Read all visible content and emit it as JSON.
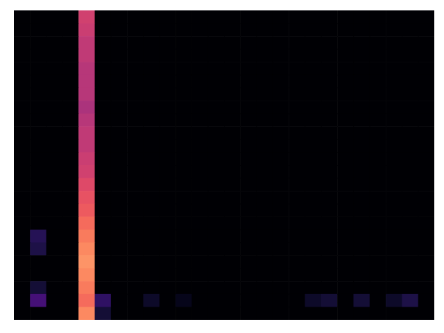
{
  "chart_data": {
    "type": "heatmap",
    "tick_labels": false,
    "zlim": [
      -80,
      0
    ],
    "z": [
      [
        -80,
        -80,
        -80,
        -80,
        -35,
        -80,
        -80,
        -80,
        -80,
        -80,
        -80,
        -80,
        -80,
        -80,
        -80,
        -80,
        -80,
        -80,
        -80,
        -80,
        -80,
        -80,
        -80,
        -80,
        -80,
        -80
      ],
      [
        -80,
        -80,
        -80,
        -80,
        -36,
        -80,
        -80,
        -80,
        -80,
        -80,
        -80,
        -80,
        -80,
        -80,
        -80,
        -80,
        -80,
        -80,
        -80,
        -80,
        -80,
        -80,
        -80,
        -80,
        -80,
        -80
      ],
      [
        -80,
        -80,
        -80,
        -80,
        -38,
        -80,
        -80,
        -80,
        -80,
        -80,
        -80,
        -80,
        -80,
        -80,
        -80,
        -80,
        -80,
        -80,
        -80,
        -80,
        -80,
        -80,
        -80,
        -80,
        -80,
        -80
      ],
      [
        -80,
        -80,
        -80,
        -80,
        -38,
        -80,
        -80,
        -80,
        -80,
        -80,
        -80,
        -80,
        -80,
        -80,
        -80,
        -80,
        -80,
        -80,
        -80,
        -80,
        -80,
        -80,
        -80,
        -80,
        -80,
        -80
      ],
      [
        -80,
        -80,
        -80,
        -80,
        -40,
        -80,
        -80,
        -80,
        -80,
        -80,
        -80,
        -80,
        -80,
        -80,
        -80,
        -80,
        -80,
        -80,
        -80,
        -80,
        -80,
        -80,
        -80,
        -80,
        -80,
        -80
      ],
      [
        -80,
        -80,
        -80,
        -80,
        -40,
        -80,
        -80,
        -80,
        -80,
        -80,
        -80,
        -80,
        -80,
        -80,
        -80,
        -80,
        -80,
        -80,
        -80,
        -80,
        -80,
        -80,
        -80,
        -80,
        -80,
        -80
      ],
      [
        -80,
        -80,
        -80,
        -80,
        -40,
        -80,
        -80,
        -80,
        -80,
        -80,
        -80,
        -80,
        -80,
        -80,
        -80,
        -80,
        -80,
        -80,
        -80,
        -80,
        -80,
        -80,
        -80,
        -80,
        -80,
        -80
      ],
      [
        -80,
        -80,
        -80,
        -80,
        -42,
        -80,
        -80,
        -80,
        -80,
        -80,
        -80,
        -80,
        -80,
        -80,
        -80,
        -80,
        -80,
        -80,
        -80,
        -80,
        -80,
        -80,
        -80,
        -80,
        -80,
        -80
      ],
      [
        -80,
        -80,
        -80,
        -80,
        -40,
        -80,
        -80,
        -80,
        -80,
        -80,
        -80,
        -80,
        -80,
        -80,
        -80,
        -80,
        -80,
        -80,
        -80,
        -80,
        -80,
        -80,
        -80,
        -80,
        -80,
        -80
      ],
      [
        -80,
        -80,
        -80,
        -80,
        -38,
        -80,
        -80,
        -80,
        -80,
        -80,
        -80,
        -80,
        -80,
        -80,
        -80,
        -80,
        -80,
        -80,
        -80,
        -80,
        -80,
        -80,
        -80,
        -80,
        -80,
        -80
      ],
      [
        -80,
        -80,
        -80,
        -80,
        -38,
        -80,
        -80,
        -80,
        -80,
        -80,
        -80,
        -80,
        -80,
        -80,
        -80,
        -80,
        -80,
        -80,
        -80,
        -80,
        -80,
        -80,
        -80,
        -80,
        -80,
        -80
      ],
      [
        -80,
        -80,
        -80,
        -80,
        -36,
        -80,
        -80,
        -80,
        -80,
        -80,
        -80,
        -80,
        -80,
        -80,
        -80,
        -80,
        -80,
        -80,
        -80,
        -80,
        -80,
        -80,
        -80,
        -80,
        -80,
        -80
      ],
      [
        -80,
        -80,
        -80,
        -80,
        -35,
        -80,
        -80,
        -80,
        -80,
        -80,
        -80,
        -80,
        -80,
        -80,
        -80,
        -80,
        -80,
        -80,
        -80,
        -80,
        -80,
        -80,
        -80,
        -80,
        -80,
        -80
      ],
      [
        -80,
        -80,
        -80,
        -80,
        -32,
        -80,
        -80,
        -80,
        -80,
        -80,
        -80,
        -80,
        -80,
        -80,
        -80,
        -80,
        -80,
        -80,
        -80,
        -80,
        -80,
        -80,
        -80,
        -80,
        -80,
        -80
      ],
      [
        -80,
        -80,
        -80,
        -80,
        -30,
        -80,
        -80,
        -80,
        -80,
        -80,
        -80,
        -80,
        -80,
        -80,
        -80,
        -80,
        -80,
        -80,
        -80,
        -80,
        -80,
        -80,
        -80,
        -80,
        -80,
        -80
      ],
      [
        -80,
        -80,
        -80,
        -80,
        -28,
        -80,
        -80,
        -80,
        -80,
        -80,
        -80,
        -80,
        -80,
        -80,
        -80,
        -80,
        -80,
        -80,
        -80,
        -80,
        -80,
        -80,
        -80,
        -80,
        -80,
        -80
      ],
      [
        -80,
        -80,
        -80,
        -80,
        -25,
        -80,
        -80,
        -80,
        -80,
        -80,
        -80,
        -80,
        -80,
        -80,
        -80,
        -80,
        -80,
        -80,
        -80,
        -80,
        -80,
        -80,
        -80,
        -80,
        -80,
        -80
      ],
      [
        -80,
        -68,
        -80,
        -80,
        -22,
        -80,
        -80,
        -80,
        -80,
        -80,
        -80,
        -80,
        -80,
        -80,
        -80,
        -80,
        -80,
        -80,
        -80,
        -80,
        -80,
        -80,
        -80,
        -80,
        -80,
        -80
      ],
      [
        -80,
        -70,
        -80,
        -80,
        -20,
        -80,
        -80,
        -80,
        -80,
        -80,
        -80,
        -80,
        -80,
        -80,
        -80,
        -80,
        -80,
        -80,
        -80,
        -80,
        -80,
        -80,
        -80,
        -80,
        -80,
        -80
      ],
      [
        -80,
        -80,
        -80,
        -80,
        -18,
        -80,
        -80,
        -80,
        -80,
        -80,
        -80,
        -80,
        -80,
        -80,
        -80,
        -80,
        -80,
        -80,
        -80,
        -80,
        -80,
        -80,
        -80,
        -80,
        -80,
        -80
      ],
      [
        -80,
        -80,
        -80,
        -80,
        -20,
        -80,
        -80,
        -80,
        -80,
        -80,
        -80,
        -80,
        -80,
        -80,
        -80,
        -80,
        -80,
        -80,
        -80,
        -80,
        -80,
        -80,
        -80,
        -80,
        -80,
        -80
      ],
      [
        -80,
        -72,
        -80,
        -80,
        -22,
        -80,
        -80,
        -80,
        -80,
        -80,
        -80,
        -80,
        -80,
        -80,
        -80,
        -80,
        -80,
        -80,
        -80,
        -80,
        -80,
        -80,
        -80,
        -80,
        -80,
        -80
      ],
      [
        -80,
        -62,
        -80,
        -80,
        -25,
        -66,
        -80,
        -80,
        -74,
        -80,
        -76,
        -80,
        -80,
        -80,
        -80,
        -80,
        -80,
        -80,
        -74,
        -72,
        -80,
        -72,
        -80,
        -74,
        -70,
        -80
      ],
      [
        -80,
        -80,
        -80,
        -80,
        -20,
        -72,
        -80,
        -80,
        -80,
        -80,
        -80,
        -80,
        -80,
        -80,
        -80,
        -80,
        -80,
        -80,
        -80,
        -80,
        -80,
        -80,
        -80,
        -80,
        -80,
        -80
      ]
    ]
  }
}
